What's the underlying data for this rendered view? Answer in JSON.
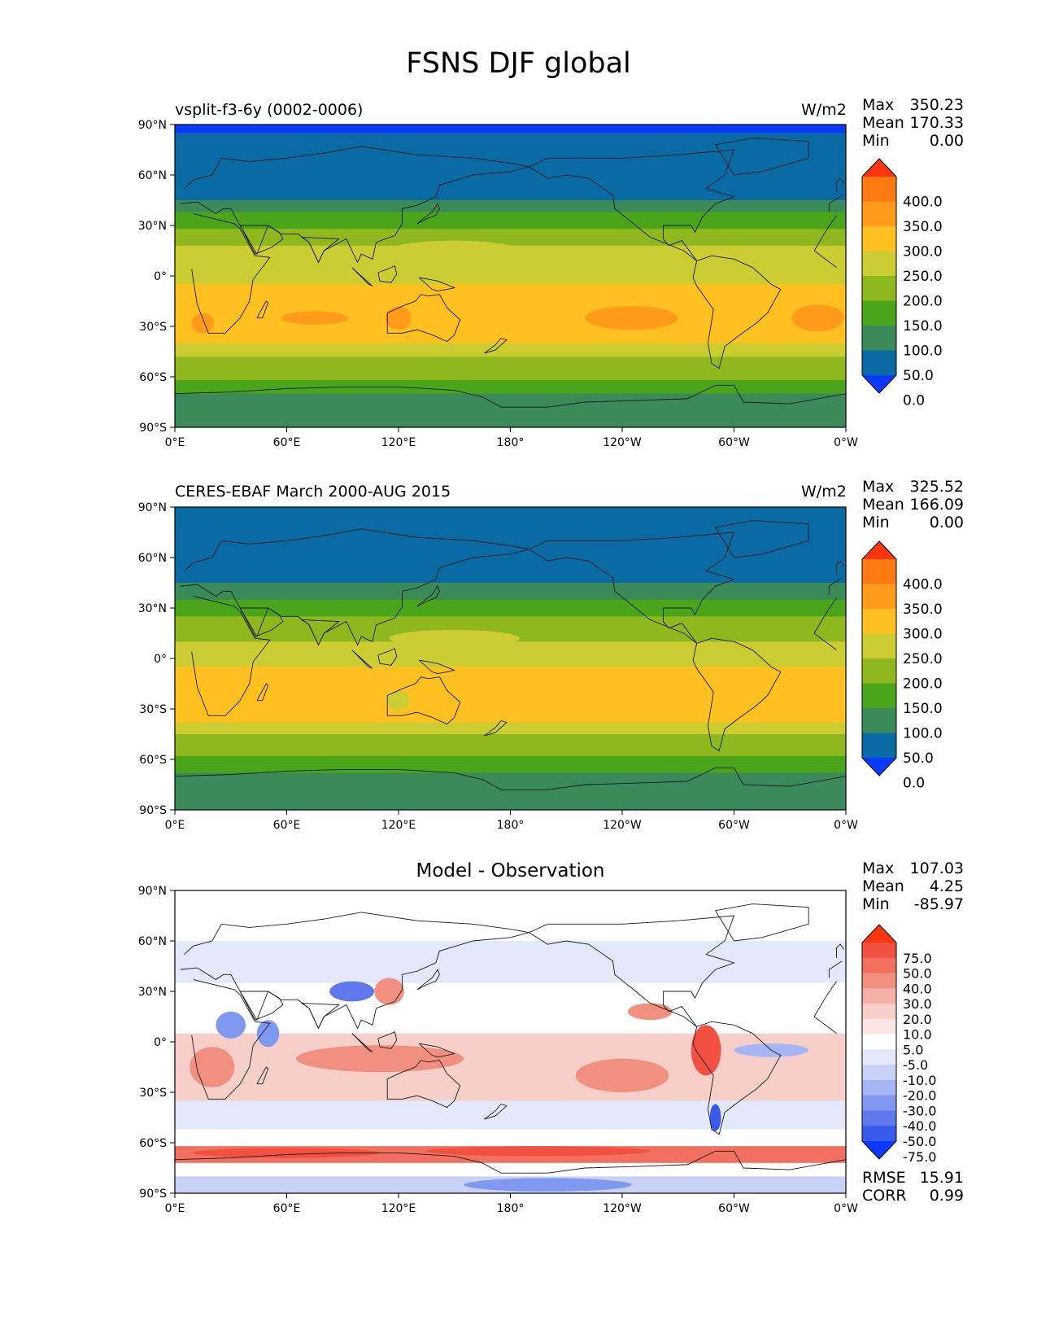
{
  "figure": {
    "title": "FSNS DJF global",
    "lat_ticks": [
      "90°N",
      "60°N",
      "30°N",
      "0°",
      "30°S",
      "60°S",
      "90°S"
    ],
    "lon_ticks": [
      "0°E",
      "60°E",
      "120°E",
      "180°",
      "120°W",
      "60°W",
      "0°W"
    ]
  },
  "panels": [
    {
      "left_title": "vsplit-f3-6y (0002-0006)",
      "center_title": "",
      "units": "W/m2",
      "stats": [
        {
          "label": "Max",
          "value": "350.23"
        },
        {
          "label": "Mean",
          "value": "170.33"
        },
        {
          "label": "Min",
          "value": "0.00"
        }
      ],
      "colorbar": {
        "labels": [
          "400.0",
          "350.0",
          "300.0",
          "250.0",
          "200.0",
          "150.0",
          "100.0",
          "50.0",
          "0.0"
        ],
        "colors": [
          "#ff3510",
          "#ff7a10",
          "#ff9a1a",
          "#ffc020",
          "#cccc33",
          "#8fb81e",
          "#4aa51a",
          "#3a8a5a",
          "#0a6aa4",
          "#0a3aff"
        ]
      },
      "bands": [
        {
          "lat_max": 90,
          "lat_min": 85,
          "color": "#0a3aff"
        },
        {
          "lat_max": 85,
          "lat_min": 45,
          "color": "#0a6aa4"
        },
        {
          "lat_max": 45,
          "lat_min": 38,
          "color": "#3a8a5a"
        },
        {
          "lat_max": 38,
          "lat_min": 28,
          "color": "#4aa51a"
        },
        {
          "lat_max": 28,
          "lat_min": 18,
          "color": "#8fb81e"
        },
        {
          "lat_max": 18,
          "lat_min": -5,
          "color": "#cccc33"
        },
        {
          "lat_max": -5,
          "lat_min": -40,
          "color": "#ffc020"
        },
        {
          "lat_max": -40,
          "lat_min": -48,
          "color": "#cccc33"
        },
        {
          "lat_max": -48,
          "lat_min": -62,
          "color": "#8fb81e"
        },
        {
          "lat_max": -62,
          "lat_min": -70,
          "color": "#4aa51a"
        },
        {
          "lat_max": -70,
          "lat_min": -90,
          "color": "#3a8a5a"
        }
      ],
      "patches": [
        {
          "lon": 245,
          "lat": -25,
          "rlon": 25,
          "rlat": 7,
          "color": "#ff9a1a"
        },
        {
          "lon": 345,
          "lat": -25,
          "rlon": 14,
          "rlat": 8,
          "color": "#ff9a1a"
        },
        {
          "lon": 75,
          "lat": -25,
          "rlon": 18,
          "rlat": 4,
          "color": "#ff9a1a"
        },
        {
          "lon": 120,
          "lat": -25,
          "rlon": 7,
          "rlat": 7,
          "color": "#ff9a1a"
        },
        {
          "lon": 15,
          "lat": -28,
          "rlon": 6,
          "rlat": 6,
          "color": "#ff9a1a"
        },
        {
          "lon": 150,
          "lat": 15,
          "rlon": 35,
          "rlat": 6,
          "color": "#cccc33"
        }
      ]
    },
    {
      "left_title": "CERES-EBAF March 2000-AUG 2015",
      "center_title": "",
      "units": "W/m2",
      "stats": [
        {
          "label": "Max",
          "value": "325.52"
        },
        {
          "label": "Mean",
          "value": "166.09"
        },
        {
          "label": "Min",
          "value": "0.00"
        }
      ],
      "colorbar": {
        "labels": [
          "400.0",
          "350.0",
          "300.0",
          "250.0",
          "200.0",
          "150.0",
          "100.0",
          "50.0",
          "0.0"
        ],
        "colors": [
          "#ff3510",
          "#ff7a10",
          "#ff9a1a",
          "#ffc020",
          "#cccc33",
          "#8fb81e",
          "#4aa51a",
          "#3a8a5a",
          "#0a6aa4",
          "#0a3aff"
        ]
      },
      "bands": [
        {
          "lat_max": 90,
          "lat_min": 45,
          "color": "#0a6aa4"
        },
        {
          "lat_max": 45,
          "lat_min": 35,
          "color": "#3a8a5a"
        },
        {
          "lat_max": 35,
          "lat_min": 25,
          "color": "#4aa51a"
        },
        {
          "lat_max": 25,
          "lat_min": 10,
          "color": "#8fb81e"
        },
        {
          "lat_max": 10,
          "lat_min": -5,
          "color": "#cccc33"
        },
        {
          "lat_max": -5,
          "lat_min": -38,
          "color": "#ffc020"
        },
        {
          "lat_max": -38,
          "lat_min": -45,
          "color": "#cccc33"
        },
        {
          "lat_max": -45,
          "lat_min": -58,
          "color": "#8fb81e"
        },
        {
          "lat_max": -58,
          "lat_min": -68,
          "color": "#4aa51a"
        },
        {
          "lat_max": -68,
          "lat_min": -90,
          "color": "#3a8a5a"
        }
      ],
      "patches": [
        {
          "lon": 150,
          "lat": 12,
          "rlon": 35,
          "rlat": 5,
          "color": "#cccc33"
        },
        {
          "lon": 120,
          "lat": -25,
          "rlon": 6,
          "rlat": 6,
          "color": "#cccc33"
        }
      ]
    },
    {
      "left_title": "",
      "center_title": "Model - Observation",
      "units": "",
      "stats": [
        {
          "label": "Max",
          "value": "107.03"
        },
        {
          "label": "Mean",
          "value": "4.25"
        },
        {
          "label": "Min",
          "value": "-85.97"
        }
      ],
      "bottom_stats": [
        {
          "label": "RMSE",
          "value": "15.91"
        },
        {
          "label": "CORR",
          "value": "0.99"
        }
      ],
      "colorbar": {
        "labels": [
          "75.0",
          "50.0",
          "40.0",
          "30.0",
          "20.0",
          "10.0",
          "5.0",
          "-5.0",
          "-10.0",
          "-20.0",
          "-30.0",
          "-40.0",
          "-50.0",
          "-75.0"
        ],
        "colors": [
          "#ff3510",
          "#f25040",
          "#f27060",
          "#f29080",
          "#f5b0a5",
          "#f8cfc8",
          "#fbe6e3",
          "#ffffff",
          "#e3e8fb",
          "#c8d2f8",
          "#a5b5f5",
          "#8098f0",
          "#6078ee",
          "#3a5aee",
          "#0a3aff"
        ]
      },
      "bands": [
        {
          "lat_max": 90,
          "lat_min": 60,
          "color": "#ffffff"
        },
        {
          "lat_max": 60,
          "lat_min": 35,
          "color": "#e3e8fb"
        },
        {
          "lat_max": 35,
          "lat_min": 5,
          "color": "#ffffff"
        },
        {
          "lat_max": 5,
          "lat_min": -35,
          "color": "#f8cfc8"
        },
        {
          "lat_max": -35,
          "lat_min": -52,
          "color": "#e3e8fb"
        },
        {
          "lat_max": -52,
          "lat_min": -62,
          "color": "#ffffff"
        },
        {
          "lat_max": -62,
          "lat_min": -72,
          "color": "#f27060"
        },
        {
          "lat_max": -72,
          "lat_min": -80,
          "color": "#ffffff"
        },
        {
          "lat_max": -80,
          "lat_min": -90,
          "color": "#c8d2f8"
        }
      ],
      "patches": [
        {
          "lon": 110,
          "lat": -10,
          "rlon": 45,
          "rlat": 8,
          "color": "#f29080"
        },
        {
          "lon": 240,
          "lat": -20,
          "rlon": 25,
          "rlat": 10,
          "color": "#f29080"
        },
        {
          "lon": 285,
          "lat": -5,
          "rlon": 8,
          "rlat": 15,
          "color": "#f25040"
        },
        {
          "lon": 20,
          "lat": -15,
          "rlon": 12,
          "rlat": 12,
          "color": "#f29080"
        },
        {
          "lon": 95,
          "lat": 30,
          "rlon": 12,
          "rlat": 6,
          "color": "#6078ee"
        },
        {
          "lon": 30,
          "lat": 10,
          "rlon": 8,
          "rlat": 8,
          "color": "#8098f0"
        },
        {
          "lon": 50,
          "lat": 5,
          "rlon": 6,
          "rlat": 8,
          "color": "#8098f0"
        },
        {
          "lon": 115,
          "lat": 30,
          "rlon": 8,
          "rlat": 8,
          "color": "#f29080"
        },
        {
          "lon": 290,
          "lat": -45,
          "rlon": 3,
          "rlat": 8,
          "color": "#3a5aee"
        },
        {
          "lon": 320,
          "lat": -5,
          "rlon": 20,
          "rlat": 4,
          "color": "#a5b5f5"
        },
        {
          "lon": 195,
          "lat": -65,
          "rlon": 60,
          "rlat": 3,
          "color": "#f25040"
        },
        {
          "lon": 60,
          "lat": -66,
          "rlon": 50,
          "rlat": 3,
          "color": "#f25040"
        },
        {
          "lon": 200,
          "lat": -85,
          "rlon": 45,
          "rlat": 4,
          "color": "#8098f0"
        },
        {
          "lon": 255,
          "lat": 18,
          "rlon": 12,
          "rlat": 5,
          "color": "#f29080"
        }
      ]
    }
  ]
}
